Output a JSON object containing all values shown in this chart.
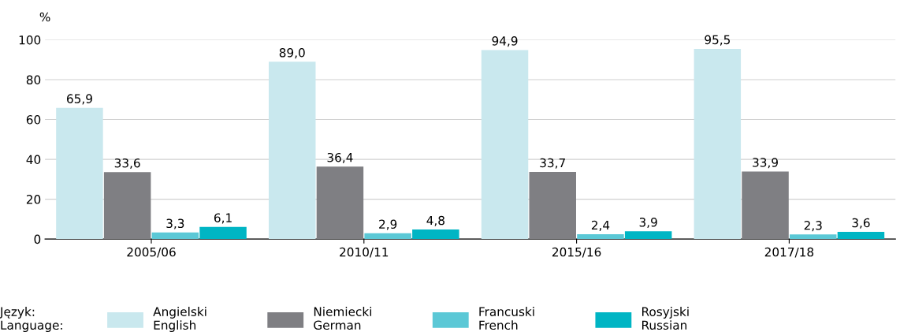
{
  "chart_data": {
    "type": "bar",
    "ylabel": "%",
    "categories": [
      "2005/06",
      "2010/11",
      "2015/16",
      "2017/18"
    ],
    "series": [
      {
        "name": "Angielski\nEnglish",
        "color": "#c9e8ee",
        "values": [
          65.9,
          89.0,
          94.9,
          95.5
        ],
        "value_labels": [
          "65,9",
          "89,0",
          "94,9",
          "95,5"
        ]
      },
      {
        "name": "Niemiecki\nGerman",
        "color": "#7f7f83",
        "values": [
          33.6,
          36.4,
          33.7,
          33.9
        ],
        "value_labels": [
          "33,6",
          "36,4",
          "33,7",
          "33,9"
        ]
      },
      {
        "name": "Francuski\nFrench",
        "color": "#5bc8d6",
        "values": [
          3.3,
          2.9,
          2.4,
          2.3
        ],
        "value_labels": [
          "3,3",
          "2,9",
          "2,4",
          "2,3"
        ]
      },
      {
        "name": "Rosyjski\nRussian",
        "color": "#00b5c4",
        "values": [
          6.1,
          4.8,
          3.9,
          3.6
        ],
        "value_labels": [
          "6,1",
          "4,8",
          "3,9",
          "3,6"
        ]
      }
    ],
    "legend_title": "Język:\nLanguage:",
    "ylim": [
      0,
      100
    ],
    "yticks": [
      0,
      20,
      40,
      60,
      80,
      100
    ],
    "grid": "y",
    "legend": "bottom"
  }
}
